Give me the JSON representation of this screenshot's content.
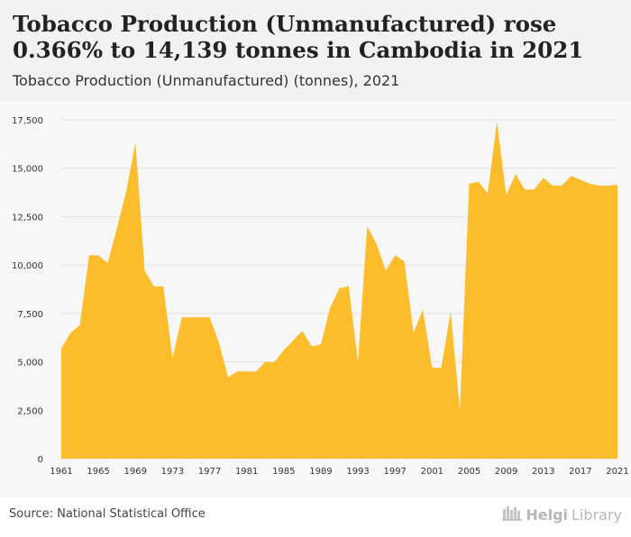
{
  "header": {
    "title": "Tobacco Production (Unmanufactured) rose 0.366% to 14,139 tonnes in Cambodia in 2021",
    "subtitle": "Tobacco Production (Unmanufactured) (tonnes), 2021"
  },
  "footer": {
    "source": "Source: National Statistical Office",
    "brand_helgi": "Helgi",
    "brand_library": "Library",
    "brand_logo_icon": "bookshelf-icon"
  },
  "colors": {
    "area_fill": "#fbbd2c",
    "gridline": "#e3e3e3",
    "axis_text": "#333333"
  },
  "chart_data": {
    "type": "area",
    "title": "Tobacco Production (Unmanufactured) (tonnes), 2021",
    "xlabel": "",
    "ylabel": "",
    "ylim": [
      0,
      17500
    ],
    "xlim": [
      1961,
      2021
    ],
    "grid": true,
    "legend": "none",
    "y_ticks": [
      0,
      2500,
      5000,
      7500,
      10000,
      12500,
      15000,
      17500
    ],
    "y_tick_labels": [
      "0",
      "2,500",
      "5,000",
      "7,500",
      "10,000",
      "12,500",
      "15,000",
      "17,500"
    ],
    "x_ticks": [
      1961,
      1965,
      1969,
      1973,
      1977,
      1981,
      1985,
      1989,
      1993,
      1997,
      2001,
      2005,
      2009,
      2013,
      2017,
      2021
    ],
    "x_tick_labels": [
      "1961",
      "1965",
      "1969",
      "1973",
      "1977",
      "1981",
      "1985",
      "1989",
      "1993",
      "1997",
      "2001",
      "2005",
      "2009",
      "2013",
      "2017",
      "2021"
    ],
    "x": [
      1961,
      1962,
      1963,
      1964,
      1965,
      1966,
      1967,
      1968,
      1969,
      1970,
      1971,
      1972,
      1973,
      1974,
      1975,
      1976,
      1977,
      1978,
      1979,
      1980,
      1981,
      1982,
      1983,
      1984,
      1985,
      1986,
      1987,
      1988,
      1989,
      1990,
      1991,
      1992,
      1993,
      1994,
      1995,
      1996,
      1997,
      1998,
      1999,
      2000,
      2001,
      2002,
      2003,
      2004,
      2005,
      2006,
      2007,
      2008,
      2009,
      2010,
      2011,
      2012,
      2013,
      2014,
      2015,
      2016,
      2017,
      2018,
      2019,
      2020,
      2021
    ],
    "values": [
      5700,
      6500,
      6900,
      10500,
      10500,
      10100,
      11900,
      13800,
      16300,
      9700,
      8900,
      8900,
      5200,
      7300,
      7300,
      7300,
      7300,
      6000,
      4200,
      4500,
      4500,
      4500,
      5000,
      5000,
      5600,
      6100,
      6600,
      5800,
      5900,
      7800,
      8800,
      8900,
      5000,
      12000,
      11100,
      9700,
      10500,
      10200,
      6500,
      7700,
      4700,
      4700,
      7600,
      2500,
      14200,
      14300,
      13700,
      17400,
      13600,
      14700,
      13900,
      13900,
      14500,
      14100,
      14100,
      14600,
      14400,
      14200,
      14100,
      14100,
      14139
    ]
  }
}
